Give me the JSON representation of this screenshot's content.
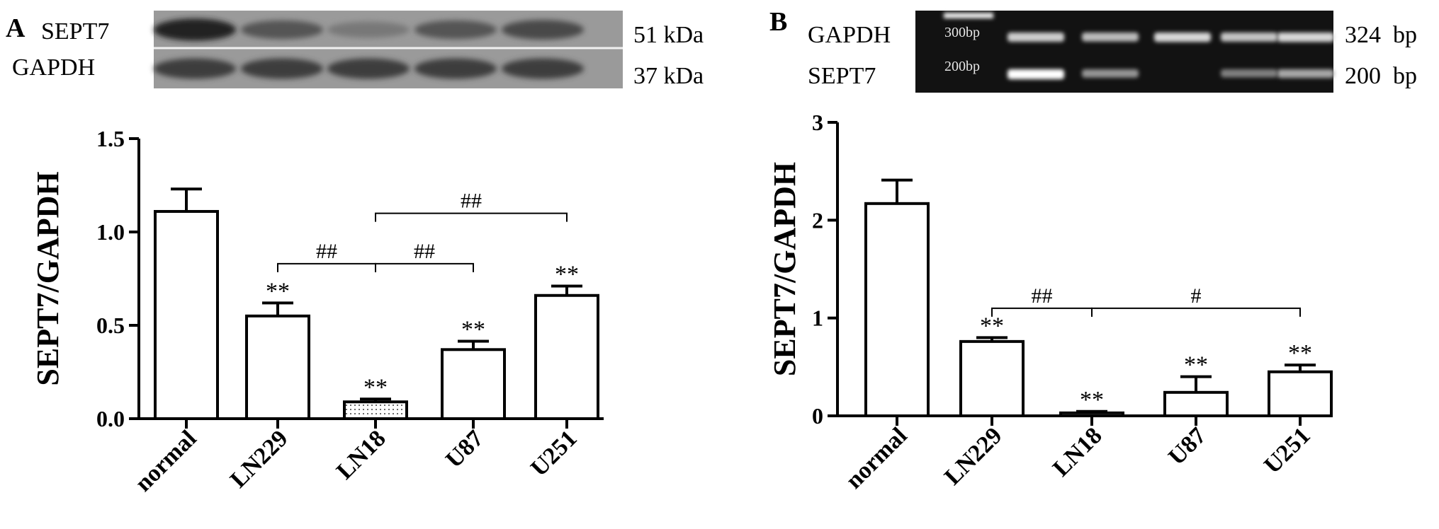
{
  "panels": {
    "a": {
      "letter": "A",
      "blot_rows": [
        {
          "label": "SEPT7",
          "size": "51 kDa",
          "band_intensity": [
            0.95,
            0.55,
            0.25,
            0.55,
            0.65
          ]
        },
        {
          "label": "GAPDH",
          "size": "37 kDa",
          "band_intensity": [
            0.75,
            0.75,
            0.75,
            0.75,
            0.75
          ]
        }
      ]
    },
    "b": {
      "letter": "B",
      "gel_rows": [
        {
          "label": "GAPDH",
          "size": "324  bp",
          "marker": "300bp",
          "band_intensity": [
            0.75,
            0.65,
            0.8,
            0.7,
            0.8
          ]
        },
        {
          "label": "SEPT7",
          "size": "200  bp",
          "marker": "200bp",
          "band_intensity": [
            1.0,
            0.45,
            0.05,
            0.35,
            0.55
          ]
        }
      ]
    }
  },
  "chart_data": [
    {
      "type": "bar",
      "panel": "A",
      "categories": [
        "normal",
        "LN229",
        "LN18",
        "U87",
        "U251"
      ],
      "values": [
        1.11,
        0.55,
        0.09,
        0.37,
        0.66
      ],
      "errors": [
        0.12,
        0.07,
        0.015,
        0.045,
        0.05
      ],
      "significance": [
        "",
        "**",
        "**",
        "**",
        "**"
      ],
      "bar_fill": [
        "plain",
        "plain",
        "dotted",
        "plain",
        "plain"
      ],
      "ylabel": "SEPT7/GAPDH",
      "xlabel": "",
      "ylim": [
        0,
        1.5
      ],
      "yticks": [
        0.0,
        0.5,
        1.0,
        1.5
      ],
      "ytick_labels": [
        "0.0",
        "0.5",
        "1.0",
        "1.5"
      ],
      "brackets": [
        {
          "from": "LN229",
          "to": "LN18",
          "label": "##",
          "level": 0.83
        },
        {
          "from": "LN18",
          "to": "U87",
          "label": "##",
          "level": 0.83
        },
        {
          "from": "LN18",
          "to": "U251",
          "label": "##",
          "level": 1.1
        }
      ]
    },
    {
      "type": "bar",
      "panel": "B",
      "categories": [
        "normal",
        "LN229",
        "LN18",
        "U87",
        "U251"
      ],
      "values": [
        2.17,
        0.76,
        0.03,
        0.24,
        0.45
      ],
      "errors": [
        0.24,
        0.04,
        0.015,
        0.16,
        0.07
      ],
      "significance": [
        "",
        "**",
        "**",
        "**",
        "**"
      ],
      "bar_fill": [
        "plain",
        "plain",
        "plain",
        "plain",
        "plain"
      ],
      "ylabel": "SEPT7/GAPDH",
      "xlabel": "",
      "ylim": [
        0,
        3
      ],
      "yticks": [
        0,
        1,
        2,
        3
      ],
      "ytick_labels": [
        "0",
        "1",
        "2",
        "3"
      ],
      "brackets": [
        {
          "from": "LN229",
          "to": "LN18",
          "label": "##",
          "level": 1.1
        },
        {
          "from": "LN18",
          "to": "U251",
          "label": "#",
          "level": 1.1
        }
      ]
    }
  ]
}
